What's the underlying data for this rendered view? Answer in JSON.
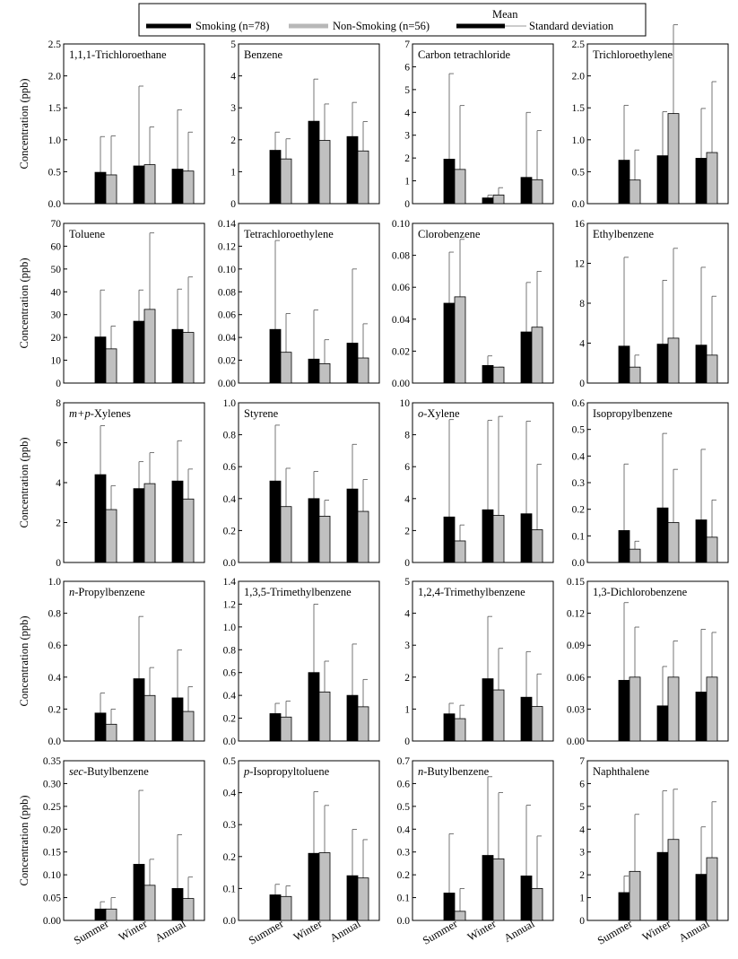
{
  "legend": {
    "smoking": "Smoking (n=78)",
    "nonsmoking": "Non-Smoking (n=56)",
    "mean": "Mean",
    "sd": "Standard deviation"
  },
  "ylabel": "Concentration (ppb)",
  "categories": [
    "Summer",
    "Winter",
    "Annual"
  ],
  "colors": {
    "smoking": "#000000",
    "nonsmoking": "#c0c0c0"
  },
  "chart_data": [
    {
      "type": "bar",
      "title": "1,1,1-Trichloroethane",
      "ylim": [
        0,
        2.5
      ],
      "yticks": [
        "0.0",
        "0.5",
        "1.0",
        "1.5",
        "2.0",
        "2.5"
      ],
      "series": [
        {
          "name": "Smoking (n=78)",
          "values": [
            0.49,
            0.59,
            0.54
          ],
          "sd": [
            0.56,
            1.25,
            0.93
          ]
        },
        {
          "name": "Non-Smoking (n=56)",
          "values": [
            0.45,
            0.61,
            0.51
          ],
          "sd": [
            0.61,
            0.59,
            0.61
          ]
        }
      ]
    },
    {
      "type": "bar",
      "title": "Benzene",
      "ylim": [
        0,
        5
      ],
      "yticks": [
        "0",
        "1",
        "2",
        "3",
        "4",
        "5"
      ],
      "series": [
        {
          "name": "Smoking (n=78)",
          "values": [
            1.67,
            2.58,
            2.1
          ],
          "sd": [
            0.57,
            1.32,
            1.07
          ]
        },
        {
          "name": "Non-Smoking (n=56)",
          "values": [
            1.4,
            1.98,
            1.65
          ],
          "sd": [
            0.63,
            1.14,
            0.92
          ]
        }
      ]
    },
    {
      "type": "bar",
      "title": "Carbon tetrachloride",
      "ylim": [
        0,
        7
      ],
      "yticks": [
        "0",
        "1",
        "2",
        "3",
        "4",
        "5",
        "6",
        "7"
      ],
      "series": [
        {
          "name": "Smoking (n=78)",
          "values": [
            1.95,
            0.25,
            1.15
          ],
          "sd": [
            3.75,
            0.12,
            2.85
          ]
        },
        {
          "name": "Non-Smoking (n=56)",
          "values": [
            1.5,
            0.38,
            1.05
          ],
          "sd": [
            2.8,
            0.32,
            2.15
          ]
        }
      ]
    },
    {
      "type": "bar",
      "title": "Trichloroethylene",
      "ylim": [
        0,
        2.5
      ],
      "yticks": [
        "0.0",
        "0.5",
        "1.0",
        "1.5",
        "2.0",
        "2.5"
      ],
      "series": [
        {
          "name": "Smoking (n=78)",
          "values": [
            0.68,
            0.75,
            0.71
          ],
          "sd": [
            0.86,
            0.69,
            0.78
          ]
        },
        {
          "name": "Non-Smoking (n=56)",
          "values": [
            0.37,
            1.41,
            0.8
          ],
          "sd": [
            0.47,
            1.39,
            1.11
          ]
        }
      ]
    },
    {
      "type": "bar",
      "title": "Toluene",
      "ylim": [
        0,
        70
      ],
      "yticks": [
        "0",
        "10",
        "20",
        "30",
        "40",
        "50",
        "60",
        "70"
      ],
      "series": [
        {
          "name": "Smoking (n=78)",
          "values": [
            20.2,
            27.1,
            23.5
          ],
          "sd": [
            20.6,
            13.7,
            17.7
          ]
        },
        {
          "name": "Non-Smoking (n=56)",
          "values": [
            15.0,
            32.3,
            22.2
          ],
          "sd": [
            10.0,
            33.5,
            24.3
          ]
        }
      ]
    },
    {
      "type": "bar",
      "title": "Tetrachloroethylene",
      "ylim": [
        0,
        0.14
      ],
      "yticks": [
        "0.00",
        "0.02",
        "0.04",
        "0.06",
        "0.08",
        "0.10",
        "0.12",
        "0.14"
      ],
      "series": [
        {
          "name": "Smoking (n=78)",
          "values": [
            0.047,
            0.021,
            0.035
          ],
          "sd": [
            0.078,
            0.043,
            0.065
          ]
        },
        {
          "name": "Non-Smoking (n=56)",
          "values": [
            0.027,
            0.017,
            0.022
          ],
          "sd": [
            0.034,
            0.021,
            0.03
          ]
        }
      ]
    },
    {
      "type": "bar",
      "title": "Clorobenzene",
      "ylim": [
        0,
        0.1
      ],
      "yticks": [
        "0.00",
        "0.02",
        "0.04",
        "0.06",
        "0.08",
        "0.10"
      ],
      "series": [
        {
          "name": "Smoking (n=78)",
          "values": [
            0.05,
            0.011,
            0.032
          ],
          "sd": [
            0.032,
            0.006,
            0.031
          ]
        },
        {
          "name": "Non-Smoking (n=56)",
          "values": [
            0.054,
            0.01,
            0.035
          ],
          "sd": [
            0.036,
            0.0,
            0.035
          ]
        }
      ]
    },
    {
      "type": "bar",
      "title": "Ethylbenzene",
      "ylim": [
        0,
        16
      ],
      "yticks": [
        "0",
        "4",
        "8",
        "12",
        "16"
      ],
      "series": [
        {
          "name": "Smoking (n=78)",
          "values": [
            3.7,
            3.9,
            3.8
          ],
          "sd": [
            8.9,
            6.4,
            7.8
          ]
        },
        {
          "name": "Non-Smoking (n=56)",
          "values": [
            1.6,
            4.5,
            2.8
          ],
          "sd": [
            1.2,
            9.0,
            5.9
          ]
        }
      ]
    },
    {
      "type": "bar",
      "title": "m+p-Xylenes",
      "ylim": [
        0,
        8
      ],
      "yticks": [
        "0",
        "2",
        "4",
        "6",
        "8"
      ],
      "series": [
        {
          "name": "Smoking (n=78)",
          "values": [
            4.4,
            3.7,
            4.08
          ],
          "sd": [
            2.45,
            1.35,
            2.02
          ]
        },
        {
          "name": "Non-Smoking (n=56)",
          "values": [
            2.65,
            3.95,
            3.18
          ],
          "sd": [
            1.2,
            1.55,
            1.5
          ]
        }
      ]
    },
    {
      "type": "bar",
      "title": "Styrene",
      "ylim": [
        0,
        1.0
      ],
      "yticks": [
        "0.0",
        "0.2",
        "0.4",
        "0.6",
        "0.8",
        "1.0"
      ],
      "series": [
        {
          "name": "Smoking (n=78)",
          "values": [
            0.51,
            0.4,
            0.46
          ],
          "sd": [
            0.35,
            0.17,
            0.28
          ]
        },
        {
          "name": "Non-Smoking (n=56)",
          "values": [
            0.35,
            0.29,
            0.32
          ],
          "sd": [
            0.24,
            0.1,
            0.2
          ]
        }
      ]
    },
    {
      "type": "bar",
      "title": "o-Xylene",
      "ylim": [
        0,
        10
      ],
      "yticks": [
        "0",
        "2",
        "4",
        "6",
        "8",
        "10"
      ],
      "series": [
        {
          "name": "Smoking (n=78)",
          "values": [
            2.85,
            3.3,
            3.05
          ],
          "sd": [
            6.1,
            5.6,
            5.8
          ]
        },
        {
          "name": "Non-Smoking (n=56)",
          "values": [
            1.35,
            2.95,
            2.05
          ],
          "sd": [
            1.0,
            6.2,
            4.1
          ]
        }
      ]
    },
    {
      "type": "bar",
      "title": "Isopropylbenzene",
      "ylim": [
        0,
        0.6
      ],
      "yticks": [
        "0.0",
        "0.1",
        "0.2",
        "0.3",
        "0.4",
        "0.5",
        "0.6"
      ],
      "series": [
        {
          "name": "Smoking (n=78)",
          "values": [
            0.12,
            0.205,
            0.16
          ],
          "sd": [
            0.25,
            0.28,
            0.265
          ]
        },
        {
          "name": "Non-Smoking (n=56)",
          "values": [
            0.05,
            0.15,
            0.095
          ],
          "sd": [
            0.03,
            0.2,
            0.14
          ]
        }
      ]
    },
    {
      "type": "bar",
      "title": "n-Propylbenzene",
      "ylim": [
        0,
        1.0
      ],
      "yticks": [
        "0.0",
        "0.2",
        "0.4",
        "0.6",
        "0.8",
        "1.0"
      ],
      "series": [
        {
          "name": "Smoking (n=78)",
          "values": [
            0.175,
            0.39,
            0.27
          ],
          "sd": [
            0.125,
            0.39,
            0.3
          ]
        },
        {
          "name": "Non-Smoking (n=56)",
          "values": [
            0.105,
            0.285,
            0.185
          ],
          "sd": [
            0.095,
            0.175,
            0.155
          ]
        }
      ]
    },
    {
      "type": "bar",
      "title": "1,3,5-Trimethylbenzene",
      "ylim": [
        0,
        1.4
      ],
      "yticks": [
        "0.0",
        "0.2",
        "0.4",
        "0.6",
        "0.8",
        "1.0",
        "1.2",
        "1.4"
      ],
      "series": [
        {
          "name": "Smoking (n=78)",
          "values": [
            0.24,
            0.6,
            0.4
          ],
          "sd": [
            0.09,
            0.6,
            0.45
          ]
        },
        {
          "name": "Non-Smoking (n=56)",
          "values": [
            0.21,
            0.43,
            0.3
          ],
          "sd": [
            0.14,
            0.27,
            0.24
          ]
        }
      ]
    },
    {
      "type": "bar",
      "title": "1,2,4-Trimethylbenzene",
      "ylim": [
        0,
        5
      ],
      "yticks": [
        "0",
        "1",
        "2",
        "3",
        "4",
        "5"
      ],
      "series": [
        {
          "name": "Smoking (n=78)",
          "values": [
            0.85,
            1.95,
            1.37
          ],
          "sd": [
            0.33,
            1.95,
            1.43
          ]
        },
        {
          "name": "Non-Smoking (n=56)",
          "values": [
            0.7,
            1.6,
            1.08
          ],
          "sd": [
            0.42,
            1.3,
            1.02
          ]
        }
      ]
    },
    {
      "type": "bar",
      "title": "1,3-Dichlorobenzene",
      "ylim": [
        0,
        0.15
      ],
      "yticks": [
        "0.00",
        "0.03",
        "0.06",
        "0.09",
        "0.12",
        "0.15"
      ],
      "series": [
        {
          "name": "Smoking (n=78)",
          "values": [
            0.057,
            0.033,
            0.046
          ],
          "sd": [
            0.073,
            0.037,
            0.059
          ]
        },
        {
          "name": "Non-Smoking (n=56)",
          "values": [
            0.06,
            0.06,
            0.06
          ],
          "sd": [
            0.047,
            0.034,
            0.042
          ]
        }
      ]
    },
    {
      "type": "bar",
      "title": "sec-Butylbenzene",
      "ylim": [
        0,
        0.35
      ],
      "yticks": [
        "0.00",
        "0.05",
        "0.10",
        "0.15",
        "0.20",
        "0.25",
        "0.30",
        "0.35"
      ],
      "series": [
        {
          "name": "Smoking (n=78)",
          "values": [
            0.025,
            0.123,
            0.07
          ],
          "sd": [
            0.016,
            0.162,
            0.118
          ]
        },
        {
          "name": "Non-Smoking (n=56)",
          "values": [
            0.025,
            0.077,
            0.048
          ],
          "sd": [
            0.025,
            0.057,
            0.047
          ]
        }
      ]
    },
    {
      "type": "bar",
      "title": "p-Isopropyltoluene",
      "ylim": [
        0,
        0.5
      ],
      "yticks": [
        "0.0",
        "0.1",
        "0.2",
        "0.3",
        "0.4",
        "0.5"
      ],
      "series": [
        {
          "name": "Smoking (n=78)",
          "values": [
            0.08,
            0.21,
            0.14
          ],
          "sd": [
            0.033,
            0.193,
            0.145
          ]
        },
        {
          "name": "Non-Smoking (n=56)",
          "values": [
            0.075,
            0.212,
            0.133
          ],
          "sd": [
            0.033,
            0.148,
            0.12
          ]
        }
      ]
    },
    {
      "type": "bar",
      "title": "n-Butylbenzene",
      "ylim": [
        0,
        0.7
      ],
      "yticks": [
        "0.0",
        "0.1",
        "0.2",
        "0.3",
        "0.4",
        "0.5",
        "0.6",
        "0.7"
      ],
      "series": [
        {
          "name": "Smoking (n=78)",
          "values": [
            0.12,
            0.285,
            0.195
          ],
          "sd": [
            0.26,
            0.345,
            0.31
          ]
        },
        {
          "name": "Non-Smoking (n=56)",
          "values": [
            0.04,
            0.27,
            0.14
          ],
          "sd": [
            0.1,
            0.29,
            0.23
          ]
        }
      ]
    },
    {
      "type": "bar",
      "title": "Naphthalene",
      "ylim": [
        0,
        7
      ],
      "yticks": [
        "0",
        "1",
        "2",
        "3",
        "4",
        "5",
        "6",
        "7"
      ],
      "series": [
        {
          "name": "Smoking (n=78)",
          "values": [
            1.22,
            2.98,
            2.02
          ],
          "sd": [
            0.73,
            2.7,
            2.08
          ]
        },
        {
          "name": "Non-Smoking (n=56)",
          "values": [
            2.15,
            3.55,
            2.75
          ],
          "sd": [
            2.5,
            2.2,
            2.45
          ]
        }
      ]
    }
  ]
}
